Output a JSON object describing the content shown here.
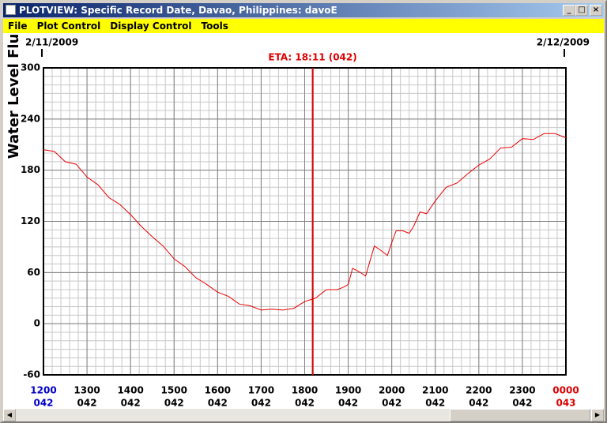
{
  "window": {
    "title": "PLOTVIEW: Specific Record Date, Davao, Philippines: davoE",
    "menu": [
      "File",
      "Plot Control",
      "Display Control",
      "Tools"
    ]
  },
  "chart_data": {
    "type": "line",
    "y_label": "Water Level Fluctuations in cm",
    "start_date": "2/11/2009",
    "end_date": "2/12/2009",
    "eta_label": "ETA: 18:11 (042)",
    "eta_x": 18.183,
    "eta_color": "#dd0000",
    "xlim": [
      12,
      24
    ],
    "xticks": [
      {
        "value": 12,
        "label": "1200",
        "day": "042",
        "color": "#0000cc"
      },
      {
        "value": 13,
        "label": "1300",
        "day": "042",
        "color": "#000000"
      },
      {
        "value": 14,
        "label": "1400",
        "day": "042",
        "color": "#000000"
      },
      {
        "value": 15,
        "label": "1500",
        "day": "042",
        "color": "#000000"
      },
      {
        "value": 16,
        "label": "1600",
        "day": "042",
        "color": "#000000"
      },
      {
        "value": 17,
        "label": "1700",
        "day": "042",
        "color": "#000000"
      },
      {
        "value": 18,
        "label": "1800",
        "day": "042",
        "color": "#000000"
      },
      {
        "value": 19,
        "label": "1900",
        "day": "042",
        "color": "#000000"
      },
      {
        "value": 20,
        "label": "2000",
        "day": "042",
        "color": "#000000"
      },
      {
        "value": 21,
        "label": "2100",
        "day": "042",
        "color": "#000000"
      },
      {
        "value": 22,
        "label": "2200",
        "day": "042",
        "color": "#000000"
      },
      {
        "value": 23,
        "label": "2300",
        "day": "042",
        "color": "#000000"
      },
      {
        "value": 24,
        "label": "0000",
        "day": "043",
        "color": "#dd0000"
      }
    ],
    "ylim": [
      -60,
      300
    ],
    "yticks": [
      -60,
      0,
      60,
      120,
      180,
      240,
      300
    ],
    "x_minor_step": 0.2,
    "y_minor_step": 10,
    "grid": true,
    "series": [
      {
        "color": "#ee0000",
        "x": [
          12,
          12.25,
          12.5,
          12.75,
          13,
          13.25,
          13.5,
          13.75,
          14,
          14.25,
          14.5,
          14.75,
          15,
          15.25,
          15.5,
          15.75,
          16,
          16.25,
          16.5,
          16.75,
          17,
          17.25,
          17.5,
          17.75,
          18,
          18.25,
          18.5,
          18.75,
          18.9,
          19,
          19.1,
          19.25,
          19.4,
          19.6,
          19.75,
          19.9,
          20,
          20.1,
          20.25,
          20.4,
          20.5,
          20.65,
          20.8,
          21,
          21.25,
          21.5,
          21.75,
          22,
          22.25,
          22.5,
          22.75,
          23,
          23.25,
          23.5,
          23.75,
          24
        ],
        "values": [
          204,
          202,
          190,
          187,
          172,
          163,
          148,
          140,
          128,
          114,
          102,
          91,
          76,
          67,
          54,
          46,
          37,
          32,
          23,
          21,
          16,
          17,
          16,
          18,
          26,
          30,
          40,
          40,
          43,
          46,
          65,
          61,
          56,
          91,
          86,
          80,
          95,
          109,
          109,
          106,
          114,
          131,
          129,
          144,
          160,
          165,
          176,
          186,
          193,
          206,
          207,
          217,
          216,
          223,
          223,
          218
        ]
      }
    ]
  }
}
